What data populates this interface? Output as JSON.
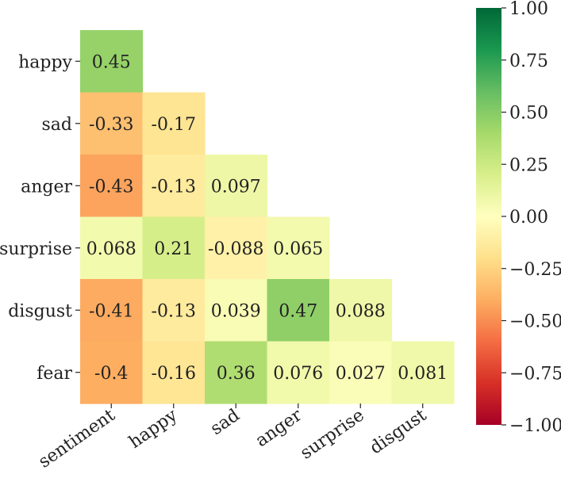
{
  "chart_data": {
    "type": "heatmap",
    "title": "",
    "xlabel": "",
    "ylabel": "",
    "x_categories": [
      "sentiment",
      "happy",
      "sad",
      "anger",
      "surprise",
      "disgust"
    ],
    "y_categories": [
      "happy",
      "sad",
      "anger",
      "surprise",
      "disgust",
      "fear"
    ],
    "mask": "upper-triangle",
    "values": [
      [
        0.45,
        null,
        null,
        null,
        null,
        null
      ],
      [
        -0.33,
        -0.17,
        null,
        null,
        null,
        null
      ],
      [
        -0.43,
        -0.13,
        0.097,
        null,
        null,
        null
      ],
      [
        0.068,
        0.21,
        -0.088,
        0.065,
        null,
        null
      ],
      [
        -0.41,
        -0.13,
        0.039,
        0.47,
        0.088,
        null
      ],
      [
        -0.4,
        -0.16,
        0.36,
        0.076,
        0.027,
        0.081
      ]
    ],
    "value_labels": [
      [
        "0.45",
        null,
        null,
        null,
        null,
        null
      ],
      [
        "-0.33",
        "-0.17",
        null,
        null,
        null,
        null
      ],
      [
        "-0.43",
        "-0.13",
        "0.097",
        null,
        null,
        null
      ],
      [
        "0.068",
        "0.21",
        "-0.088",
        "0.065",
        null,
        null
      ],
      [
        "-0.41",
        "-0.13",
        "0.039",
        "0.47",
        "0.088",
        null
      ],
      [
        "-0.4",
        "-0.16",
        "0.36",
        "0.076",
        "0.027",
        "0.081"
      ]
    ],
    "colormap": "RdYlGn",
    "colormap_stops": [
      "#a50026",
      "#d73027",
      "#f46d43",
      "#fdae61",
      "#fee08b",
      "#ffffbf",
      "#d9ef8b",
      "#a6d96a",
      "#66bd63",
      "#1a9850",
      "#006837"
    ],
    "vmin": -1.0,
    "vmax": 1.0,
    "colorbar": {
      "ticks": [
        1.0,
        0.75,
        0.5,
        0.25,
        0.0,
        -0.25,
        -0.5,
        -0.75,
        -1.0
      ],
      "tick_labels": [
        "1.00",
        "0.75",
        "0.50",
        "0.25",
        "0.00",
        "−0.25",
        "−0.50",
        "−0.75",
        "−1.00"
      ]
    },
    "grid": false,
    "x_tick_rotation_deg": 35
  }
}
